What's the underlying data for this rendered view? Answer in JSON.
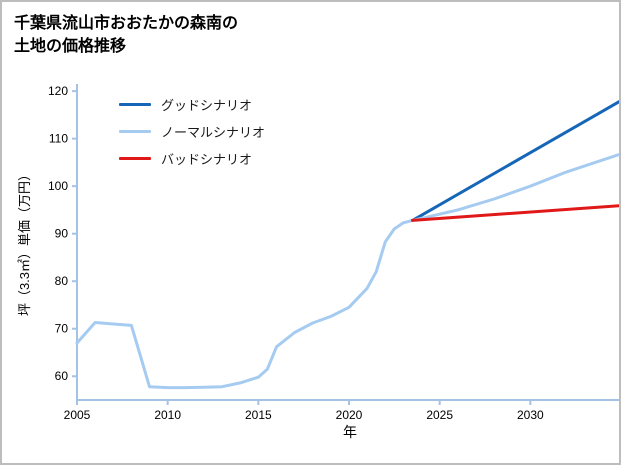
{
  "title": {
    "line1": "千葉県流山市おおたかの森南の",
    "line2": "土地の価格推移"
  },
  "chart_data": {
    "type": "line",
    "title": "千葉県流山市おおたかの森南の土地の価格推移",
    "xlabel": "年",
    "ylabel": "坪（3.3㎡）単価（万円）",
    "xlim": [
      2005,
      2035
    ],
    "ylim": [
      55,
      121.5
    ],
    "xticks": [
      2005,
      2010,
      2015,
      2020,
      2025,
      2030
    ],
    "yticks": [
      60,
      70,
      80,
      90,
      100,
      110,
      120
    ],
    "grid": false,
    "axis_color": "#a4c3e4",
    "tick_label_color": "#000000",
    "legend_position": "top-left-inside",
    "series": [
      {
        "id": "history",
        "legend": null,
        "color": "#a6cbf0",
        "width": 3,
        "x": [
          2005,
          2006,
          2007,
          2008,
          2009,
          2010,
          2011,
          2012,
          2013,
          2014,
          2015,
          2015.5,
          2016,
          2017,
          2018,
          2019,
          2020,
          2021,
          2021.5,
          2022,
          2022.5,
          2023,
          2023.5
        ],
        "y": [
          67,
          71.3,
          71,
          70.7,
          57.8,
          57.6,
          57.6,
          57.7,
          57.8,
          58.6,
          59.8,
          61.5,
          66.2,
          69.2,
          71.2,
          72.6,
          74.5,
          78.5,
          82,
          88.3,
          91,
          92.3,
          92.8
        ]
      },
      {
        "id": "good",
        "legend": "グッドシナリオ",
        "color": "#1566b8",
        "width": 3,
        "x": [
          2023.5,
          2035
        ],
        "y": [
          92.8,
          118
        ]
      },
      {
        "id": "normal",
        "legend": "ノーマルシナリオ",
        "color": "#a6cbf0",
        "width": 3,
        "x": [
          2023.5,
          2026,
          2028,
          2030,
          2032,
          2035
        ],
        "y": [
          92.8,
          95,
          97.3,
          100,
          103,
          106.8
        ]
      },
      {
        "id": "bad",
        "legend": "バッドシナリオ",
        "color": "#e01818",
        "width": 3,
        "x": [
          2023.5,
          2035
        ],
        "y": [
          92.8,
          95.9
        ]
      }
    ]
  }
}
